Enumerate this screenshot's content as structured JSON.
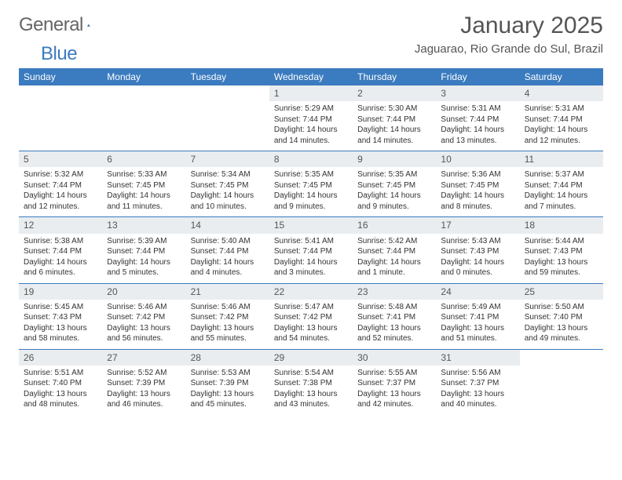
{
  "logo": {
    "word1": "General",
    "word2": "Blue"
  },
  "title": "January 2025",
  "subtitle": "Jaguarao, Rio Grande do Sul, Brazil",
  "header_bg": "#3b7bbf",
  "header_fg": "#ffffff",
  "daynum_bg": "#e9edf0",
  "rule_color": "#3b7bbf",
  "weekdays": [
    "Sunday",
    "Monday",
    "Tuesday",
    "Wednesday",
    "Thursday",
    "Friday",
    "Saturday"
  ],
  "weeks": [
    [
      null,
      null,
      null,
      {
        "n": "1",
        "sr": "Sunrise: 5:29 AM",
        "ss": "Sunset: 7:44 PM",
        "dl1": "Daylight: 14 hours",
        "dl2": "and 14 minutes."
      },
      {
        "n": "2",
        "sr": "Sunrise: 5:30 AM",
        "ss": "Sunset: 7:44 PM",
        "dl1": "Daylight: 14 hours",
        "dl2": "and 14 minutes."
      },
      {
        "n": "3",
        "sr": "Sunrise: 5:31 AM",
        "ss": "Sunset: 7:44 PM",
        "dl1": "Daylight: 14 hours",
        "dl2": "and 13 minutes."
      },
      {
        "n": "4",
        "sr": "Sunrise: 5:31 AM",
        "ss": "Sunset: 7:44 PM",
        "dl1": "Daylight: 14 hours",
        "dl2": "and 12 minutes."
      }
    ],
    [
      {
        "n": "5",
        "sr": "Sunrise: 5:32 AM",
        "ss": "Sunset: 7:44 PM",
        "dl1": "Daylight: 14 hours",
        "dl2": "and 12 minutes."
      },
      {
        "n": "6",
        "sr": "Sunrise: 5:33 AM",
        "ss": "Sunset: 7:45 PM",
        "dl1": "Daylight: 14 hours",
        "dl2": "and 11 minutes."
      },
      {
        "n": "7",
        "sr": "Sunrise: 5:34 AM",
        "ss": "Sunset: 7:45 PM",
        "dl1": "Daylight: 14 hours",
        "dl2": "and 10 minutes."
      },
      {
        "n": "8",
        "sr": "Sunrise: 5:35 AM",
        "ss": "Sunset: 7:45 PM",
        "dl1": "Daylight: 14 hours",
        "dl2": "and 9 minutes."
      },
      {
        "n": "9",
        "sr": "Sunrise: 5:35 AM",
        "ss": "Sunset: 7:45 PM",
        "dl1": "Daylight: 14 hours",
        "dl2": "and 9 minutes."
      },
      {
        "n": "10",
        "sr": "Sunrise: 5:36 AM",
        "ss": "Sunset: 7:45 PM",
        "dl1": "Daylight: 14 hours",
        "dl2": "and 8 minutes."
      },
      {
        "n": "11",
        "sr": "Sunrise: 5:37 AM",
        "ss": "Sunset: 7:44 PM",
        "dl1": "Daylight: 14 hours",
        "dl2": "and 7 minutes."
      }
    ],
    [
      {
        "n": "12",
        "sr": "Sunrise: 5:38 AM",
        "ss": "Sunset: 7:44 PM",
        "dl1": "Daylight: 14 hours",
        "dl2": "and 6 minutes."
      },
      {
        "n": "13",
        "sr": "Sunrise: 5:39 AM",
        "ss": "Sunset: 7:44 PM",
        "dl1": "Daylight: 14 hours",
        "dl2": "and 5 minutes."
      },
      {
        "n": "14",
        "sr": "Sunrise: 5:40 AM",
        "ss": "Sunset: 7:44 PM",
        "dl1": "Daylight: 14 hours",
        "dl2": "and 4 minutes."
      },
      {
        "n": "15",
        "sr": "Sunrise: 5:41 AM",
        "ss": "Sunset: 7:44 PM",
        "dl1": "Daylight: 14 hours",
        "dl2": "and 3 minutes."
      },
      {
        "n": "16",
        "sr": "Sunrise: 5:42 AM",
        "ss": "Sunset: 7:44 PM",
        "dl1": "Daylight: 14 hours",
        "dl2": "and 1 minute."
      },
      {
        "n": "17",
        "sr": "Sunrise: 5:43 AM",
        "ss": "Sunset: 7:43 PM",
        "dl1": "Daylight: 14 hours",
        "dl2": "and 0 minutes."
      },
      {
        "n": "18",
        "sr": "Sunrise: 5:44 AM",
        "ss": "Sunset: 7:43 PM",
        "dl1": "Daylight: 13 hours",
        "dl2": "and 59 minutes."
      }
    ],
    [
      {
        "n": "19",
        "sr": "Sunrise: 5:45 AM",
        "ss": "Sunset: 7:43 PM",
        "dl1": "Daylight: 13 hours",
        "dl2": "and 58 minutes."
      },
      {
        "n": "20",
        "sr": "Sunrise: 5:46 AM",
        "ss": "Sunset: 7:42 PM",
        "dl1": "Daylight: 13 hours",
        "dl2": "and 56 minutes."
      },
      {
        "n": "21",
        "sr": "Sunrise: 5:46 AM",
        "ss": "Sunset: 7:42 PM",
        "dl1": "Daylight: 13 hours",
        "dl2": "and 55 minutes."
      },
      {
        "n": "22",
        "sr": "Sunrise: 5:47 AM",
        "ss": "Sunset: 7:42 PM",
        "dl1": "Daylight: 13 hours",
        "dl2": "and 54 minutes."
      },
      {
        "n": "23",
        "sr": "Sunrise: 5:48 AM",
        "ss": "Sunset: 7:41 PM",
        "dl1": "Daylight: 13 hours",
        "dl2": "and 52 minutes."
      },
      {
        "n": "24",
        "sr": "Sunrise: 5:49 AM",
        "ss": "Sunset: 7:41 PM",
        "dl1": "Daylight: 13 hours",
        "dl2": "and 51 minutes."
      },
      {
        "n": "25",
        "sr": "Sunrise: 5:50 AM",
        "ss": "Sunset: 7:40 PM",
        "dl1": "Daylight: 13 hours",
        "dl2": "and 49 minutes."
      }
    ],
    [
      {
        "n": "26",
        "sr": "Sunrise: 5:51 AM",
        "ss": "Sunset: 7:40 PM",
        "dl1": "Daylight: 13 hours",
        "dl2": "and 48 minutes."
      },
      {
        "n": "27",
        "sr": "Sunrise: 5:52 AM",
        "ss": "Sunset: 7:39 PM",
        "dl1": "Daylight: 13 hours",
        "dl2": "and 46 minutes."
      },
      {
        "n": "28",
        "sr": "Sunrise: 5:53 AM",
        "ss": "Sunset: 7:39 PM",
        "dl1": "Daylight: 13 hours",
        "dl2": "and 45 minutes."
      },
      {
        "n": "29",
        "sr": "Sunrise: 5:54 AM",
        "ss": "Sunset: 7:38 PM",
        "dl1": "Daylight: 13 hours",
        "dl2": "and 43 minutes."
      },
      {
        "n": "30",
        "sr": "Sunrise: 5:55 AM",
        "ss": "Sunset: 7:37 PM",
        "dl1": "Daylight: 13 hours",
        "dl2": "and 42 minutes."
      },
      {
        "n": "31",
        "sr": "Sunrise: 5:56 AM",
        "ss": "Sunset: 7:37 PM",
        "dl1": "Daylight: 13 hours",
        "dl2": "and 40 minutes."
      },
      null
    ]
  ]
}
